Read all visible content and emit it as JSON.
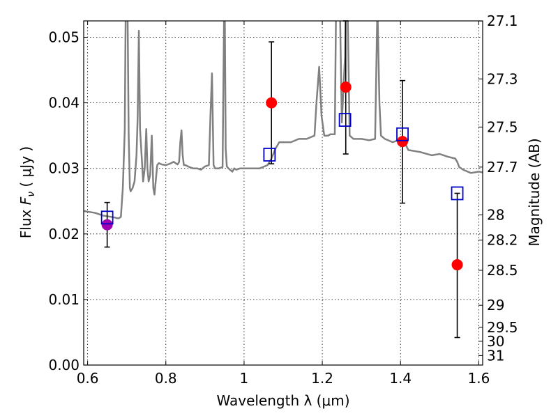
{
  "chart_data": {
    "type": "scatter",
    "xlabel": "Wavelength  λ (μm)",
    "ylabel_prefix": "Flux  ",
    "ylabel_symbol": "F",
    "ylabel_subscript": "ν",
    "ylabel_suffix": "  ( μJy )",
    "ylabel_right": "Magnitude (AB)",
    "xlim": [
      0.59,
      1.61
    ],
    "ylim": [
      0.0,
      0.0525
    ],
    "grid": true,
    "x_ticks": [
      0.6,
      0.8,
      1.0,
      1.2,
      1.4,
      1.6
    ],
    "x_tick_labels": [
      "0.6",
      "0.8",
      "1",
      "1.2",
      "1.4",
      "1.6"
    ],
    "y_ticks": [
      0.0,
      0.01,
      0.02,
      0.03,
      0.04,
      0.05
    ],
    "y_tick_labels": [
      "0.00",
      "0.01",
      "0.02",
      "0.03",
      "0.04",
      "0.05"
    ],
    "right_ticks": [
      27.1,
      27.3,
      27.5,
      27.7,
      28,
      28.2,
      28.5,
      29,
      29.5,
      30,
      31
    ],
    "right_tick_labels": [
      "27.1",
      "27.3",
      "27.5",
      "27.7",
      "28",
      "28.2",
      "28.5",
      "29",
      "29.5",
      "30",
      "31"
    ],
    "template_spectrum": {
      "color": "#808080",
      "x": [
        0.59,
        0.6,
        0.62,
        0.64,
        0.66,
        0.67,
        0.675,
        0.68,
        0.685,
        0.69,
        0.695,
        0.698,
        0.7,
        0.702,
        0.705,
        0.708,
        0.71,
        0.715,
        0.72,
        0.725,
        0.728,
        0.731,
        0.734,
        0.738,
        0.742,
        0.746,
        0.75,
        0.753,
        0.756,
        0.76,
        0.764,
        0.768,
        0.771,
        0.774,
        0.778,
        0.782,
        0.79,
        0.8,
        0.81,
        0.82,
        0.83,
        0.834,
        0.837,
        0.84,
        0.843,
        0.846,
        0.85,
        0.86,
        0.87,
        0.88,
        0.89,
        0.9,
        0.91,
        0.914,
        0.918,
        0.922,
        0.926,
        0.93,
        0.935,
        0.945,
        0.95,
        0.953,
        0.956,
        0.96,
        0.97,
        0.975,
        0.98,
        0.99,
        1.0,
        1.02,
        1.04,
        1.06,
        1.07,
        1.08,
        1.09,
        1.1,
        1.12,
        1.14,
        1.16,
        1.18,
        1.185,
        1.192,
        1.198,
        1.205,
        1.21,
        1.215,
        1.22,
        1.232,
        1.236,
        1.245,
        1.25,
        1.258,
        1.262,
        1.27,
        1.28,
        1.3,
        1.32,
        1.335,
        1.341,
        1.346,
        1.35,
        1.36,
        1.38,
        1.39,
        1.4,
        1.41,
        1.42,
        1.45,
        1.48,
        1.5,
        1.52,
        1.54,
        1.545,
        1.55,
        1.56,
        1.58,
        1.6,
        1.61
      ],
      "y": [
        0.0235,
        0.0234,
        0.0232,
        0.0228,
        0.0226,
        0.0225,
        0.0224,
        0.0224,
        0.0226,
        0.027,
        0.036,
        0.06,
        0.08,
        0.055,
        0.035,
        0.027,
        0.0265,
        0.027,
        0.028,
        0.032,
        0.038,
        0.051,
        0.036,
        0.032,
        0.028,
        0.03,
        0.036,
        0.03,
        0.028,
        0.029,
        0.035,
        0.027,
        0.026,
        0.028,
        0.0305,
        0.0308,
        0.0306,
        0.0305,
        0.0307,
        0.031,
        0.0306,
        0.031,
        0.034,
        0.0358,
        0.032,
        0.0305,
        0.0305,
        0.0302,
        0.03,
        0.03,
        0.0298,
        0.0303,
        0.0305,
        0.038,
        0.0445,
        0.0305,
        0.03,
        0.03,
        0.03,
        0.0302,
        0.06,
        0.033,
        0.0303,
        0.03,
        0.0295,
        0.03,
        0.0298,
        0.03,
        0.03,
        0.03,
        0.03,
        0.0305,
        0.0315,
        0.033,
        0.034,
        0.034,
        0.034,
        0.0345,
        0.0345,
        0.035,
        0.04,
        0.0455,
        0.038,
        0.035,
        0.035,
        0.035,
        0.0352,
        0.0352,
        0.06,
        0.055,
        0.037,
        0.047,
        0.065,
        0.035,
        0.0345,
        0.0345,
        0.0343,
        0.0345,
        0.055,
        0.04,
        0.035,
        0.0345,
        0.034,
        0.0342,
        0.0342,
        0.034,
        0.0328,
        0.0325,
        0.032,
        0.0322,
        0.0318,
        0.0315,
        0.031,
        0.0302,
        0.0298,
        0.0293,
        0.0295,
        0.0294
      ]
    },
    "series": [
      {
        "marker": "circle",
        "color": "#ff0000",
        "points": [
          {
            "x": 1.07,
            "y": 0.04,
            "ylo": 0.0307,
            "yhi": 0.0493
          },
          {
            "x": 1.26,
            "y": 0.0424,
            "ylo": 0.0322,
            "yhi": 0.0525
          },
          {
            "x": 1.405,
            "y": 0.0341,
            "ylo": 0.0247,
            "yhi": 0.0434
          },
          {
            "x": 1.545,
            "y": 0.0153,
            "ylo": 0.0042,
            "yhi": 0.0262
          }
        ]
      },
      {
        "marker": "circle",
        "color": "#a000b0",
        "points": [
          {
            "x": 0.65,
            "y": 0.0214,
            "ylo": 0.018,
            "yhi": 0.0248
          }
        ]
      },
      {
        "marker": "square",
        "color": "#0000cc",
        "points": [
          {
            "x": 0.65,
            "y": 0.0225
          },
          {
            "x": 1.065,
            "y": 0.0321
          },
          {
            "x": 1.258,
            "y": 0.0374
          },
          {
            "x": 1.405,
            "y": 0.0352
          },
          {
            "x": 1.545,
            "y": 0.0262
          }
        ]
      }
    ]
  }
}
